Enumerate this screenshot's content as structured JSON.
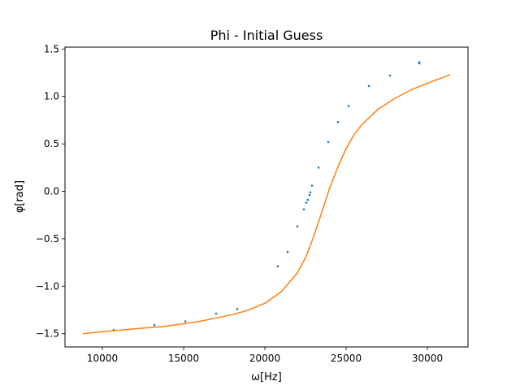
{
  "chart_data": {
    "type": "scatter",
    "title": "Phi - Initial Guess",
    "xlabel": "ω[Hz]",
    "ylabel": "φ[rad]",
    "xlim": [
      7700,
      32500
    ],
    "ylim": [
      -1.64,
      1.52
    ],
    "xticks": [
      10000,
      15000,
      20000,
      25000,
      30000
    ],
    "yticks": [
      -1.5,
      -1.0,
      -0.5,
      0.0,
      0.5,
      1.0,
      1.5
    ],
    "xtick_labels": [
      "10000",
      "15000",
      "20000",
      "25000",
      "30000"
    ],
    "ytick_labels": [
      "−1.5",
      "−1.0",
      "−0.5",
      "0.0",
      "0.5",
      "1.0",
      "1.5"
    ],
    "grid": false,
    "series": [
      {
        "kind": "scatter",
        "color": "#1f77b4",
        "points": [
          [
            10700,
            -1.46
          ],
          [
            13200,
            -1.41
          ],
          [
            15100,
            -1.37
          ],
          [
            17000,
            -1.29
          ],
          [
            18300,
            -1.24
          ],
          [
            20800,
            -0.79
          ],
          [
            21400,
            -0.64
          ],
          [
            22000,
            -0.37
          ],
          [
            22400,
            -0.19
          ],
          [
            22550,
            -0.12
          ],
          [
            22650,
            -0.09
          ],
          [
            22750,
            -0.04
          ],
          [
            22800,
            -0.01
          ],
          [
            22900,
            0.06
          ],
          [
            23300,
            0.25
          ],
          [
            23900,
            0.52
          ],
          [
            24500,
            0.73
          ],
          [
            25150,
            0.9
          ],
          [
            26400,
            1.11
          ],
          [
            27700,
            1.22
          ],
          [
            29500,
            1.36
          ],
          [
            29500,
            1.35
          ]
        ]
      },
      {
        "kind": "line",
        "color": "#ff7f0e",
        "points": [
          [
            8800,
            -1.5
          ],
          [
            10000,
            -1.48
          ],
          [
            12000,
            -1.45
          ],
          [
            14000,
            -1.42
          ],
          [
            16000,
            -1.37
          ],
          [
            18000,
            -1.3
          ],
          [
            19000,
            -1.25
          ],
          [
            20000,
            -1.18
          ],
          [
            21000,
            -1.06
          ],
          [
            22000,
            -0.86
          ],
          [
            22500,
            -0.7
          ],
          [
            23000,
            -0.48
          ],
          [
            23500,
            -0.22
          ],
          [
            24000,
            0.04
          ],
          [
            24500,
            0.26
          ],
          [
            25000,
            0.45
          ],
          [
            25500,
            0.6
          ],
          [
            26000,
            0.71
          ],
          [
            27000,
            0.87
          ],
          [
            28000,
            0.98
          ],
          [
            29000,
            1.07
          ],
          [
            30000,
            1.14
          ],
          [
            31400,
            1.23
          ]
        ]
      }
    ]
  }
}
